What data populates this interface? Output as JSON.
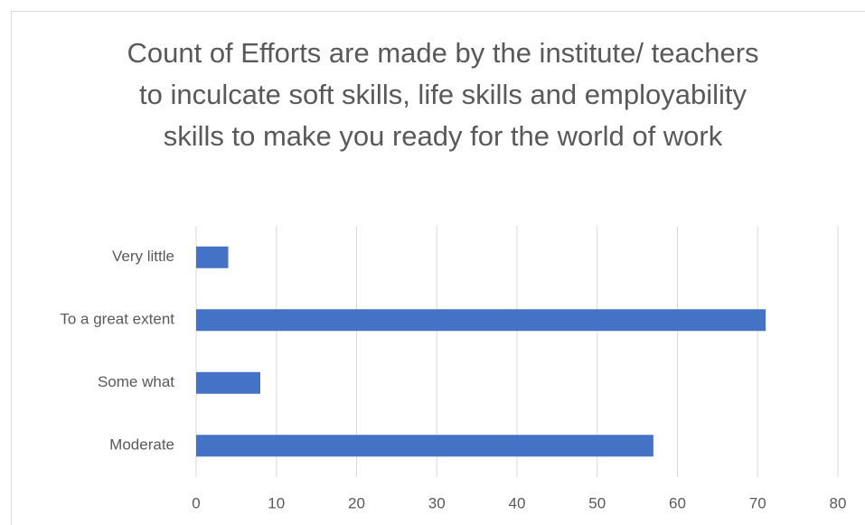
{
  "chart_data": {
    "type": "bar",
    "orientation": "horizontal",
    "title": "Count of Efforts are made by the institute/ teachers to inculcate soft skills, life skills and employability skills to make you ready for the world of work",
    "categories": [
      "Moderate",
      "Some what",
      "To a great extent",
      "Very little"
    ],
    "values": [
      57,
      8,
      71,
      4
    ],
    "color": "#4472c4",
    "xlim": [
      0,
      80
    ],
    "xticks": [
      0,
      10,
      20,
      30,
      40,
      50,
      60,
      70,
      80
    ],
    "grid": true
  }
}
